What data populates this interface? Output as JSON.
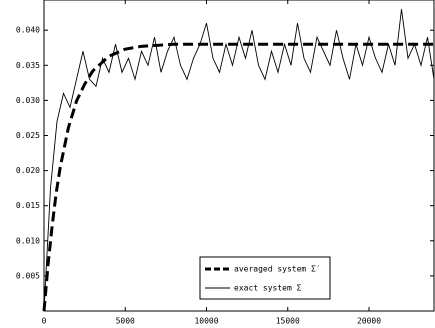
{
  "chart_data": {
    "type": "line",
    "xlim": [
      0,
      24000
    ],
    "xticks": [
      0,
      5000,
      10000,
      15000,
      20000
    ],
    "ylim": [
      0,
      0.0443
    ],
    "yticks": [
      0.005,
      {
        "value": 0.01,
        "label": "0.010"
      },
      0.015,
      {
        "value": 0.02,
        "label": "0.020"
      },
      0.025,
      {
        "value": 0.03,
        "label": "0.030"
      },
      0.035,
      {
        "value": 0.04,
        "label": "0.040"
      }
    ],
    "grid": false,
    "legend": "lower right",
    "series": [
      {
        "name": "averaged system Σ′",
        "color": "#000000",
        "style": "dashed",
        "x": [
          0,
          250,
          500,
          750,
          1000,
          1500,
          2000,
          2500,
          3000,
          4000,
          5000,
          6000,
          8000,
          24000
        ],
        "values": [
          0,
          0.0066,
          0.0121,
          0.0168,
          0.0205,
          0.0261,
          0.0299,
          0.0323,
          0.0342,
          0.0363,
          0.0373,
          0.0377,
          0.038,
          0.038
        ]
      },
      {
        "name": "exact system Σ",
        "color": "#000000",
        "style": "solid",
        "x": [
          0,
          400,
          800,
          1200,
          1600,
          2000,
          2400,
          2800,
          3200,
          3600,
          4000,
          4400,
          4800,
          5200,
          5600,
          6000,
          6400,
          6800,
          7200,
          7600,
          8000,
          8400,
          8800,
          9200,
          9600,
          10000,
          10400,
          10800,
          11200,
          11600,
          12000,
          12400,
          12800,
          13200,
          13600,
          14000,
          14400,
          14800,
          15200,
          15600,
          16000,
          16400,
          16800,
          17200,
          17600,
          18000,
          18400,
          18800,
          19200,
          19600,
          20000,
          20400,
          20800,
          21200,
          21600,
          22000,
          22400,
          22800,
          23200,
          23600,
          24000
        ],
        "values": [
          0,
          0.0175,
          0.027,
          0.031,
          0.029,
          0.033,
          0.037,
          0.033,
          0.032,
          0.036,
          0.034,
          0.038,
          0.034,
          0.036,
          0.033,
          0.037,
          0.035,
          0.039,
          0.034,
          0.037,
          0.039,
          0.035,
          0.033,
          0.036,
          0.038,
          0.041,
          0.036,
          0.034,
          0.038,
          0.035,
          0.039,
          0.036,
          0.04,
          0.035,
          0.033,
          0.037,
          0.034,
          0.038,
          0.035,
          0.041,
          0.036,
          0.034,
          0.039,
          0.037,
          0.035,
          0.04,
          0.036,
          0.033,
          0.038,
          0.035,
          0.039,
          0.036,
          0.034,
          0.038,
          0.035,
          0.043,
          0.036,
          0.038,
          0.035,
          0.039,
          0.033
        ]
      }
    ]
  }
}
